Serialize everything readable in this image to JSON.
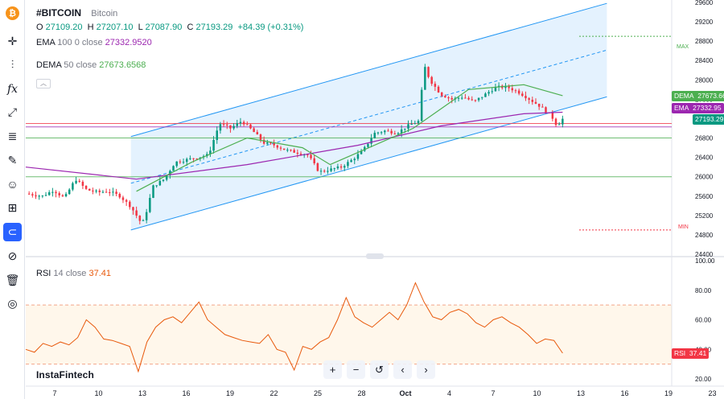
{
  "symbol": {
    "ticker": "#BITCOIN",
    "name": "Bitcoin",
    "ohlc": {
      "o_label": "O",
      "o": "27109.20",
      "h_label": "H",
      "h": "27207.10",
      "l_label": "L",
      "l": "27087.90",
      "c_label": "C",
      "c": "27193.29",
      "change": "+84.39 (+0.31%)"
    }
  },
  "indicators": {
    "ema": {
      "name": "EMA",
      "params": "100 0 close",
      "value": "27332.9520",
      "tag_label": "EMA",
      "tag_value": "27332.95"
    },
    "dema": {
      "name": "DEMA",
      "params": "50 close",
      "value": "27673.6568",
      "tag_label": "DEMA",
      "tag_value": "27673.66"
    },
    "rsi": {
      "name": "RSI",
      "params": "14 close",
      "value": "37.41",
      "tag_label": "RSI",
      "tag_value": "37.41"
    }
  },
  "last_price_tag": "27193.29",
  "markers": {
    "max": "MAX",
    "min": "MIN"
  },
  "logo": "InstaFintech",
  "colors": {
    "up": "#089981",
    "down": "#f23645",
    "ema": "#9c27b0",
    "dema": "#4caf50",
    "rsi": "#e8590c",
    "channel": "#2196f3",
    "accent": "#2962ff",
    "bitcoin": "#f7931a"
  },
  "toolbar_icons": [
    "bitcoin-icon",
    "crosshair-icon",
    "candles-icon",
    "fx-icon",
    "trend-tool-icon",
    "fib-icon",
    "brush-icon",
    "emoji-icon",
    "measure-icon",
    "magnet-icon",
    "hide-drawings-icon",
    "trash-icon",
    "camera-icon"
  ],
  "nav_icons": [
    "zoom-in-icon",
    "zoom-out-icon",
    "reset-icon",
    "scroll-left-icon",
    "scroll-right-icon"
  ],
  "chart_data": [
    {
      "type": "candlestick",
      "title": "#BITCOIN",
      "y_ticks": [
        24400,
        24800,
        25200,
        25600,
        26000,
        26400,
        26800,
        27200,
        27600,
        28000,
        28400,
        28800,
        29200,
        29600
      ],
      "ylim": [
        24400,
        29650
      ],
      "x_ticks": [
        "7",
        "10",
        "13",
        "16",
        "19",
        "22",
        "25",
        "28",
        "Oct",
        "4",
        "7",
        "10",
        "13",
        "16",
        "19",
        "23"
      ],
      "horizontal_levels": [
        27100,
        27030,
        26800,
        26000
      ],
      "channel": {
        "upper_start": 26830,
        "upper_end": 29580,
        "lower_start": 24900,
        "lower_end": 27650
      },
      "price_path": [
        [
          0,
          25650
        ],
        [
          0.03,
          25600
        ],
        [
          0.05,
          25720
        ],
        [
          0.07,
          25560
        ],
        [
          0.09,
          25950
        ],
        [
          0.11,
          25730
        ],
        [
          0.13,
          25680
        ],
        [
          0.15,
          25700
        ],
        [
          0.17,
          25600
        ],
        [
          0.19,
          25380
        ],
        [
          0.21,
          25020
        ],
        [
          0.215,
          25150
        ],
        [
          0.23,
          25800
        ],
        [
          0.25,
          25950
        ],
        [
          0.27,
          26300
        ],
        [
          0.29,
          26350
        ],
        [
          0.31,
          26400
        ],
        [
          0.33,
          26450
        ],
        [
          0.35,
          27100
        ],
        [
          0.37,
          27000
        ],
        [
          0.39,
          27150
        ],
        [
          0.41,
          26950
        ],
        [
          0.43,
          26700
        ],
        [
          0.45,
          26650
        ],
        [
          0.47,
          26550
        ],
        [
          0.49,
          26500
        ],
        [
          0.51,
          26450
        ],
        [
          0.53,
          26100
        ],
        [
          0.55,
          26150
        ],
        [
          0.57,
          26200
        ],
        [
          0.59,
          26350
        ],
        [
          0.61,
          26550
        ],
        [
          0.63,
          26900
        ],
        [
          0.65,
          26950
        ],
        [
          0.67,
          26900
        ],
        [
          0.69,
          27050
        ],
        [
          0.71,
          27150
        ],
        [
          0.72,
          28300
        ],
        [
          0.73,
          28000
        ],
        [
          0.75,
          27700
        ],
        [
          0.77,
          27600
        ],
        [
          0.79,
          27650
        ],
        [
          0.81,
          27550
        ],
        [
          0.83,
          27700
        ],
        [
          0.85,
          27850
        ],
        [
          0.87,
          27850
        ],
        [
          0.89,
          27750
        ],
        [
          0.91,
          27600
        ],
        [
          0.93,
          27450
        ],
        [
          0.95,
          27250
        ],
        [
          0.96,
          27050
        ],
        [
          0.97,
          27193
        ]
      ],
      "ema_path": [
        [
          0,
          26200
        ],
        [
          0.2,
          25950
        ],
        [
          0.4,
          26250
        ],
        [
          0.6,
          26650
        ],
        [
          0.75,
          27050
        ],
        [
          0.9,
          27300
        ],
        [
          0.97,
          27333
        ]
      ],
      "dema_path": [
        [
          0.2,
          25700
        ],
        [
          0.3,
          26300
        ],
        [
          0.4,
          26800
        ],
        [
          0.5,
          26600
        ],
        [
          0.55,
          26250
        ],
        [
          0.6,
          26500
        ],
        [
          0.7,
          27000
        ],
        [
          0.8,
          27800
        ],
        [
          0.9,
          27900
        ],
        [
          0.97,
          27674
        ]
      ]
    },
    {
      "type": "line",
      "title": "RSI",
      "y_ticks": [
        20,
        40,
        60,
        80,
        100
      ],
      "ylim": [
        20,
        100
      ],
      "bands": [
        70,
        30
      ],
      "values": [
        40,
        38,
        44,
        42,
        45,
        43,
        48,
        60,
        55,
        47,
        46,
        44,
        42,
        25,
        45,
        55,
        60,
        62,
        58,
        65,
        72,
        60,
        55,
        50,
        48,
        46,
        45,
        44,
        50,
        40,
        38,
        26,
        42,
        40,
        45,
        48,
        60,
        75,
        62,
        58,
        55,
        60,
        65,
        60,
        70,
        85,
        72,
        62,
        60,
        65,
        67,
        64,
        58,
        55,
        60,
        62,
        58,
        55,
        50,
        44,
        47,
        46,
        37.41
      ]
    }
  ]
}
